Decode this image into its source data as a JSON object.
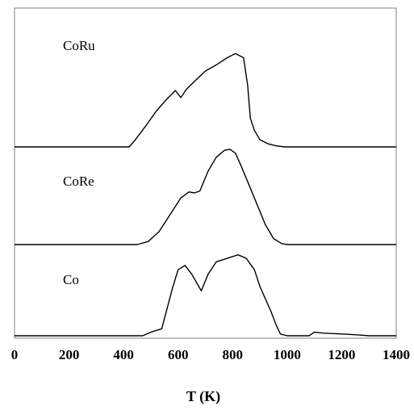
{
  "chart_data": {
    "type": "line",
    "xlabel": "T (K)",
    "ylabel": "",
    "xlim": [
      0,
      1400
    ],
    "xticks": [
      "0",
      "200",
      "400",
      "600",
      "800",
      "1000",
      "1200",
      "1400"
    ],
    "grid": false,
    "layout": "three vertically stacked panels sharing the x axis",
    "series": [
      {
        "name": "CoRu",
        "color": "#000000",
        "x": [
          0,
          420,
          440,
          480,
          520,
          560,
          590,
          610,
          630,
          660,
          700,
          740,
          780,
          810,
          840,
          855,
          865,
          880,
          900,
          930,
          960,
          990,
          1010,
          1400
        ],
        "y": [
          0,
          0,
          0.06,
          0.2,
          0.35,
          0.47,
          0.55,
          0.48,
          0.56,
          0.64,
          0.74,
          0.8,
          0.87,
          0.91,
          0.87,
          0.6,
          0.28,
          0.16,
          0.07,
          0.03,
          0.01,
          0,
          0,
          0
        ]
      },
      {
        "name": "CoRe",
        "color": "#000000",
        "x": [
          0,
          450,
          490,
          530,
          570,
          610,
          640,
          660,
          680,
          710,
          740,
          770,
          790,
          810,
          830,
          860,
          890,
          920,
          950,
          980,
          1000,
          1400
        ],
        "y": [
          0,
          0,
          0.03,
          0.13,
          0.3,
          0.47,
          0.53,
          0.52,
          0.54,
          0.74,
          0.88,
          0.95,
          0.96,
          0.92,
          0.8,
          0.6,
          0.4,
          0.2,
          0.06,
          0.01,
          0,
          0
        ]
      },
      {
        "name": "Co",
        "color": "#000000",
        "x": [
          0,
          470,
          500,
          540,
          580,
          600,
          625,
          650,
          685,
          710,
          740,
          780,
          820,
          850,
          880,
          900,
          940,
          960,
          975,
          1000,
          1080,
          1100,
          1130,
          1200,
          1260,
          1300,
          1400
        ],
        "y": [
          0,
          0,
          0.04,
          0.08,
          0.55,
          0.75,
          0.8,
          0.7,
          0.51,
          0.7,
          0.84,
          0.88,
          0.92,
          0.88,
          0.75,
          0.56,
          0.28,
          0.12,
          0.02,
          0,
          0,
          0.04,
          0.03,
          0.02,
          0.01,
          0,
          0
        ]
      }
    ]
  }
}
